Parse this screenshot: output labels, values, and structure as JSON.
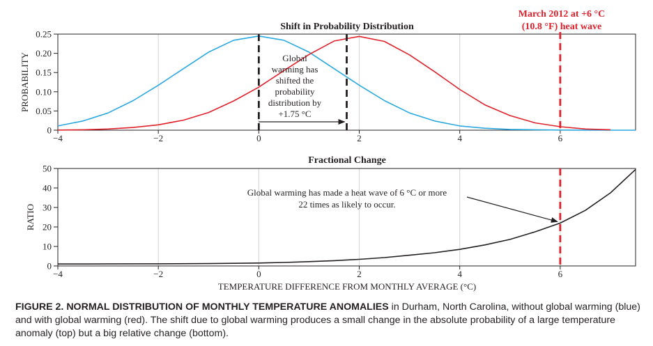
{
  "chart_data": [
    {
      "type": "line",
      "title": "Shift in Probability Distribution",
      "xlabel": "",
      "ylabel": "PROBABILITY",
      "xlim": [
        -4,
        7.5
      ],
      "ylim": [
        0,
        0.25
      ],
      "x_ticks": [
        -4,
        -2,
        0,
        2,
        4,
        6
      ],
      "y_ticks": [
        0,
        0.05,
        0.1,
        0.15,
        0.2,
        0.25
      ],
      "y_tick_labels": [
        "0",
        "0.05",
        "0.10",
        "0.15",
        "0.20",
        "0.25"
      ],
      "grid": "vertical",
      "series": [
        {
          "color": "#29a8e0",
          "x": [
            -4,
            -3.5,
            -3,
            -2.5,
            -2,
            -1.5,
            -1,
            -0.5,
            0,
            0.5,
            1,
            1.5,
            2,
            2.5,
            3,
            3.5,
            4,
            4.5,
            5,
            5.5,
            6,
            6.5,
            7,
            7.5
          ],
          "values": [
            0.011,
            0.024,
            0.045,
            0.077,
            0.117,
            0.16,
            0.203,
            0.234,
            0.245,
            0.234,
            0.203,
            0.16,
            0.117,
            0.077,
            0.045,
            0.024,
            0.011,
            0.005,
            0.002,
            0.001,
            0.0003,
            0.0001,
            0,
            0
          ]
        },
        {
          "color": "#e0202a",
          "x": [
            -4,
            -3.5,
            -3,
            -2.5,
            -2,
            -1.5,
            -1,
            -0.5,
            0,
            0.5,
            1,
            1.5,
            2,
            2.5,
            3,
            3.5,
            4,
            4.5,
            5,
            5.5,
            6,
            6.5,
            7
          ],
          "values": [
            0.0004,
            0.001,
            0.003,
            0.007,
            0.014,
            0.026,
            0.046,
            0.076,
            0.112,
            0.155,
            0.197,
            0.232,
            0.244,
            0.231,
            0.196,
            0.152,
            0.106,
            0.066,
            0.038,
            0.019,
            0.009,
            0.003,
            0.001
          ]
        }
      ],
      "markers": [
        {
          "x": 0,
          "color": "#231f20",
          "style": "dashed"
        },
        {
          "x": 1.75,
          "color": "#231f20",
          "style": "dashed"
        },
        {
          "x": 6,
          "color": "#e0202a",
          "style": "dashed"
        }
      ],
      "annotations": {
        "shift_text": [
          "Global",
          "warming has",
          "shifted the",
          "probability",
          "distribution by",
          "+1.75 °C"
        ],
        "heatwave_text": [
          "March 2012 at +6 °C",
          "(10.8 °F) heat wave"
        ]
      }
    },
    {
      "type": "line",
      "title": "Fractional Change",
      "xlabel": "TEMPERATURE DIFFERENCE FROM MONTHLY AVERAGE (°C)",
      "ylabel": "RATIO",
      "xlim": [
        -4,
        7.5
      ],
      "ylim": [
        0,
        50
      ],
      "x_ticks": [
        -4,
        -2,
        0,
        2,
        4,
        6
      ],
      "y_ticks": [
        0,
        10,
        20,
        30,
        40,
        50
      ],
      "y_tick_labels": [
        "0",
        "10",
        "20",
        "30",
        "40",
        "50"
      ],
      "grid": "vertical",
      "series": [
        {
          "color": "#231f20",
          "x": [
            -4,
            -3,
            -2,
            -1,
            0,
            0.5,
            1,
            1.5,
            2,
            2.5,
            3,
            3.5,
            4,
            4.5,
            5,
            5.5,
            6,
            6.5,
            7,
            7.5
          ],
          "values": [
            1.0,
            1.05,
            1.1,
            1.2,
            1.5,
            1.8,
            2.2,
            2.7,
            3.4,
            4.3,
            5.5,
            6.8,
            8.5,
            10.8,
            13.6,
            17.5,
            22.0,
            28.5,
            37.5,
            49.5
          ]
        }
      ],
      "markers": [
        {
          "x": 6,
          "color": "#e0202a",
          "style": "dashed"
        }
      ],
      "annotations": {
        "ratio_text": [
          "Global warming has made a heat wave of 6 °C or more",
          "22 times as likely to occur."
        ]
      }
    }
  ],
  "caption": {
    "bold": "FIGURE 2. NORMAL DISTRIBUTION OF MONTHLY TEMPERATURE ANOMALIES",
    "rest": " in Durham, North Carolina, without global warming (blue) and with global warming (red). The shift due to global warming produces a small change in the absolute probability of a large temperature anomaly (top) but a big relative change (bottom)."
  }
}
